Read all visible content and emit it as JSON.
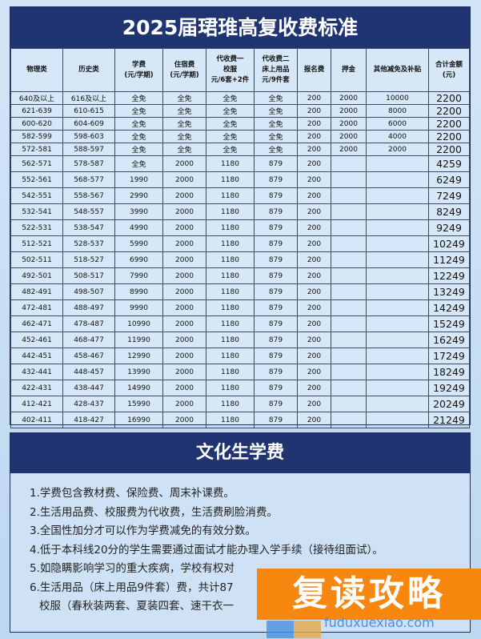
{
  "title": "2025届珺琟高复收费标准",
  "headers": [
    "物理类",
    "历史类",
    "学费\n(元/学期)",
    "住宿费\n(元/学期)",
    "代收费一\n校服\n元/6套+2件",
    "代收费二\n床上用品\n元/9件套",
    "报名费",
    "押金",
    "其他减免及补贴",
    "合计金额\n(元)"
  ],
  "rows": [
    [
      "640及以上",
      "616及以上",
      "全免",
      "全免",
      "全免",
      "全免",
      "200",
      "2000",
      "10000",
      "2200"
    ],
    [
      "621-639",
      "610-615",
      "全免",
      "全免",
      "全免",
      "全免",
      "200",
      "2000",
      "8000",
      "2200"
    ],
    [
      "600-620",
      "604-609",
      "全免",
      "全免",
      "全免",
      "全免",
      "200",
      "2000",
      "6000",
      "2200"
    ],
    [
      "582-599",
      "598-603",
      "全免",
      "全免",
      "全免",
      "全免",
      "200",
      "2000",
      "4000",
      "2200"
    ],
    [
      "572-581",
      "588-597",
      "全免",
      "全免",
      "全免",
      "全免",
      "200",
      "2000",
      "2000",
      "2200"
    ],
    [
      "562-571",
      "578-587",
      "全免",
      "2000",
      "1180",
      "879",
      "200",
      "",
      "",
      "4259"
    ],
    [
      "552-561",
      "568-577",
      "1990",
      "2000",
      "1180",
      "879",
      "200",
      "",
      "",
      "6249"
    ],
    [
      "542-551",
      "558-567",
      "2990",
      "2000",
      "1180",
      "879",
      "200",
      "",
      "",
      "7249"
    ],
    [
      "532-541",
      "548-557",
      "3990",
      "2000",
      "1180",
      "879",
      "200",
      "",
      "",
      "8249"
    ],
    [
      "522-531",
      "538-547",
      "4990",
      "2000",
      "1180",
      "879",
      "200",
      "",
      "",
      "9249"
    ],
    [
      "512-521",
      "528-537",
      "5990",
      "2000",
      "1180",
      "879",
      "200",
      "",
      "",
      "10249"
    ],
    [
      "502-511",
      "518-527",
      "6990",
      "2000",
      "1180",
      "879",
      "200",
      "",
      "",
      "11249"
    ],
    [
      "492-501",
      "508-517",
      "7990",
      "2000",
      "1180",
      "879",
      "200",
      "",
      "",
      "12249"
    ],
    [
      "482-491",
      "498-507",
      "8990",
      "2000",
      "1180",
      "879",
      "200",
      "",
      "",
      "13249"
    ],
    [
      "472-481",
      "488-497",
      "9990",
      "2000",
      "1180",
      "879",
      "200",
      "",
      "",
      "14249"
    ],
    [
      "462-471",
      "478-487",
      "10990",
      "2000",
      "1180",
      "879",
      "200",
      "",
      "",
      "15249"
    ],
    [
      "452-461",
      "468-477",
      "11990",
      "2000",
      "1180",
      "879",
      "200",
      "",
      "",
      "16249"
    ],
    [
      "442-451",
      "458-467",
      "12990",
      "2000",
      "1180",
      "879",
      "200",
      "",
      "",
      "17249"
    ],
    [
      "432-441",
      "448-457",
      "13990",
      "2000",
      "1180",
      "879",
      "200",
      "",
      "",
      "18249"
    ],
    [
      "422-431",
      "438-447",
      "14990",
      "2000",
      "1180",
      "879",
      "200",
      "",
      "",
      "19249"
    ],
    [
      "412-421",
      "428-437",
      "15990",
      "2000",
      "1180",
      "879",
      "200",
      "",
      "",
      "20249"
    ],
    [
      "402-411",
      "418-427",
      "16990",
      "2000",
      "1180",
      "879",
      "200",
      "",
      "",
      "21249"
    ]
  ],
  "section2": {
    "title": "文化生学费",
    "notes": [
      "1.学费包含教材费、保险费、周末补课费。",
      "2.生活用品费、校服费为代收费，生活费刷脸消费。",
      "3.全国性加分才可以作为学费减免的有效分数。",
      "4.低于本科线20分的学生需要通过面试才能办理入学手续（接待组面试）。",
      "5.如隐瞒影响学习的重大疾病，学校有权对",
      "6.生活用品（床上用品9件套）费，共计87",
      "校服（春秋装两套、夏装四套、速干衣一"
    ]
  },
  "watermark": {
    "text": "复读攻略",
    "url": "fuduxuexiao.com"
  }
}
